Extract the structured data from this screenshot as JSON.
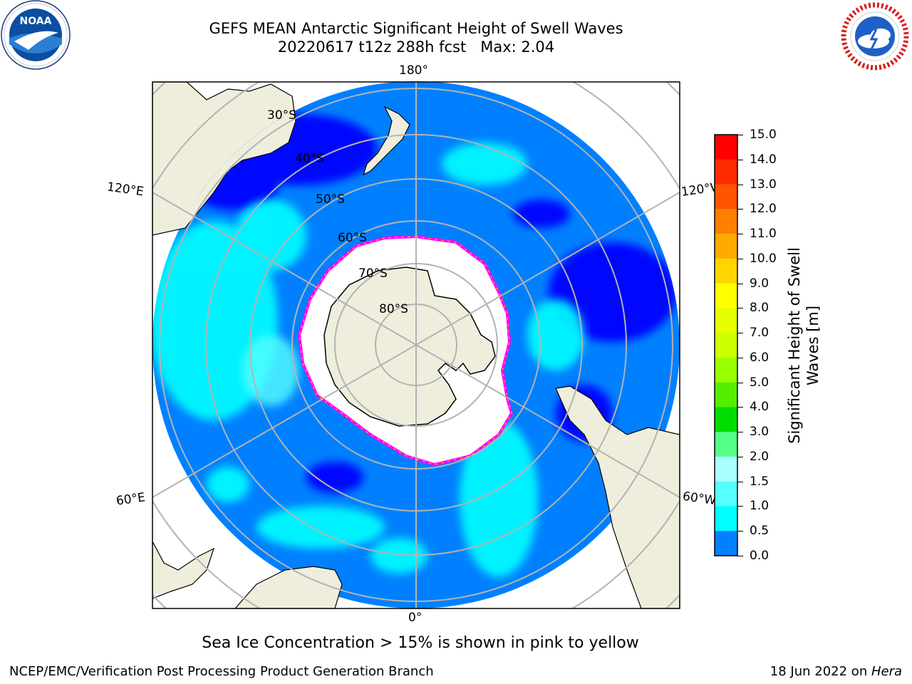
{
  "header": {
    "title_line1": "GEFS MEAN Antarctic Significant Height of Swell Waves",
    "title_line2": "20220617 t12z 288h fcst   Max: 2.04"
  },
  "logos": {
    "left": {
      "text": "NOAA",
      "ring_text": "NATIONAL OCEANIC AND ATMOSPHERIC ADMINISTRATION · U.S. DEPARTMENT OF COMMERCE"
    },
    "right": {
      "ring_text": "NATIONAL WEATHER SERVICE"
    }
  },
  "map": {
    "longitude_labels": [
      "180°",
      "120°E",
      "120°W",
      "60°E",
      "60°W",
      "0°"
    ],
    "latitude_labels": [
      "30°S",
      "40°S",
      "50°S",
      "60°S",
      "70°S",
      "80°S"
    ],
    "colors": {
      "ocean_low": "#0000ff",
      "ocean_mid": "#0080ff",
      "ocean_high": "#00ffff",
      "ocean_higher": "#55ffff",
      "land": "#efeedc",
      "ice": "#ffffff",
      "ice_edge": "#ff00ff",
      "grid": "#b3b3b3"
    }
  },
  "colorbar": {
    "title_line1": "Significant Height of Swell",
    "title_line2": "Waves [m]",
    "ticks": [
      "15.0",
      "14.0",
      "13.0",
      "12.0",
      "11.0",
      "10.0",
      "9.0",
      "8.0",
      "7.0",
      "6.0",
      "5.0",
      "4.0",
      "3.0",
      "2.0",
      "1.5",
      "1.0",
      "0.5",
      "0.0"
    ],
    "colors_top_to_bottom": [
      "#ff0000",
      "#ff2a00",
      "#ff5500",
      "#ff8000",
      "#ffaa00",
      "#ffd500",
      "#ffff00",
      "#e5ff00",
      "#ccff00",
      "#99ff00",
      "#55ee00",
      "#00dd00",
      "#55ff88",
      "#aaffff",
      "#55ffff",
      "#00ffff",
      "#0080ff",
      "#0000ff"
    ]
  },
  "note": "Sea Ice Concentration > 15% is shown in pink to yellow",
  "footer": {
    "left": "NCEP/EMC/Verification Post Processing Product Generation Branch",
    "right_date": "18 Jun 2022 on ",
    "right_host": "Hera"
  }
}
